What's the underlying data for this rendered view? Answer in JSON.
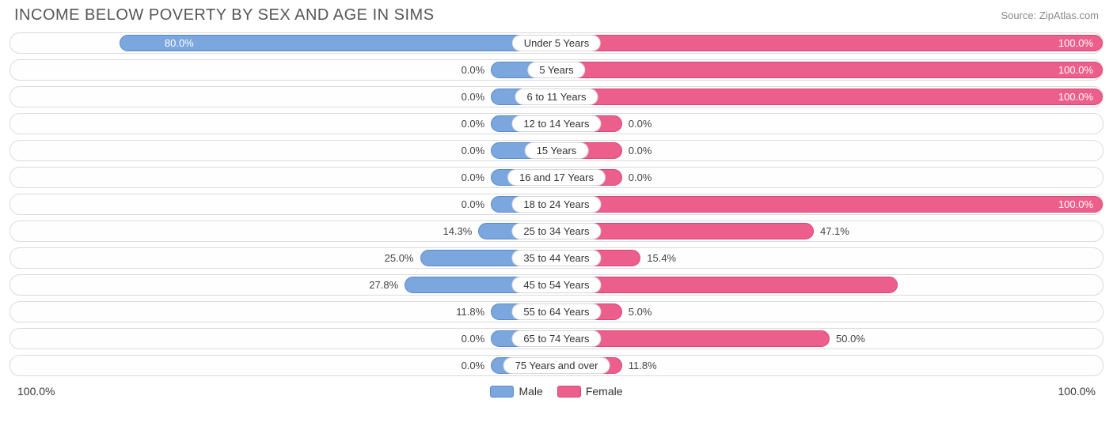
{
  "title": "INCOME BELOW POVERTY BY SEX AND AGE IN SIMS",
  "source": "Source: ZipAtlas.com",
  "colors": {
    "male_fill": "#7ba7de",
    "male_border": "#5a8ac9",
    "female_fill": "#ec5f8d",
    "female_border": "#d94577",
    "track_border": "#dcdcdc",
    "text": "#444444"
  },
  "axis": {
    "left": "100.0%",
    "right": "100.0%"
  },
  "legend": {
    "male": "Male",
    "female": "Female"
  },
  "min_bar_pct": 12,
  "rows": [
    {
      "category": "Under 5 Years",
      "male": 80.0,
      "male_label": "80.0%",
      "female": 100.0,
      "female_label": "100.0%"
    },
    {
      "category": "5 Years",
      "male": 0.0,
      "male_label": "0.0%",
      "female": 100.0,
      "female_label": "100.0%"
    },
    {
      "category": "6 to 11 Years",
      "male": 0.0,
      "male_label": "0.0%",
      "female": 100.0,
      "female_label": "100.0%"
    },
    {
      "category": "12 to 14 Years",
      "male": 0.0,
      "male_label": "0.0%",
      "female": 0.0,
      "female_label": "0.0%"
    },
    {
      "category": "15 Years",
      "male": 0.0,
      "male_label": "0.0%",
      "female": 0.0,
      "female_label": "0.0%"
    },
    {
      "category": "16 and 17 Years",
      "male": 0.0,
      "male_label": "0.0%",
      "female": 0.0,
      "female_label": "0.0%"
    },
    {
      "category": "18 to 24 Years",
      "male": 0.0,
      "male_label": "0.0%",
      "female": 100.0,
      "female_label": "100.0%"
    },
    {
      "category": "25 to 34 Years",
      "male": 14.3,
      "male_label": "14.3%",
      "female": 47.1,
      "female_label": "47.1%"
    },
    {
      "category": "35 to 44 Years",
      "male": 25.0,
      "male_label": "25.0%",
      "female": 15.4,
      "female_label": "15.4%"
    },
    {
      "category": "45 to 54 Years",
      "male": 27.8,
      "male_label": "27.8%",
      "female": 62.5,
      "female_label": "62.5%"
    },
    {
      "category": "55 to 64 Years",
      "male": 11.8,
      "male_label": "11.8%",
      "female": 5.0,
      "female_label": "5.0%"
    },
    {
      "category": "65 to 74 Years",
      "male": 0.0,
      "male_label": "0.0%",
      "female": 50.0,
      "female_label": "50.0%"
    },
    {
      "category": "75 Years and over",
      "male": 0.0,
      "male_label": "0.0%",
      "female": 11.8,
      "female_label": "11.8%"
    }
  ]
}
